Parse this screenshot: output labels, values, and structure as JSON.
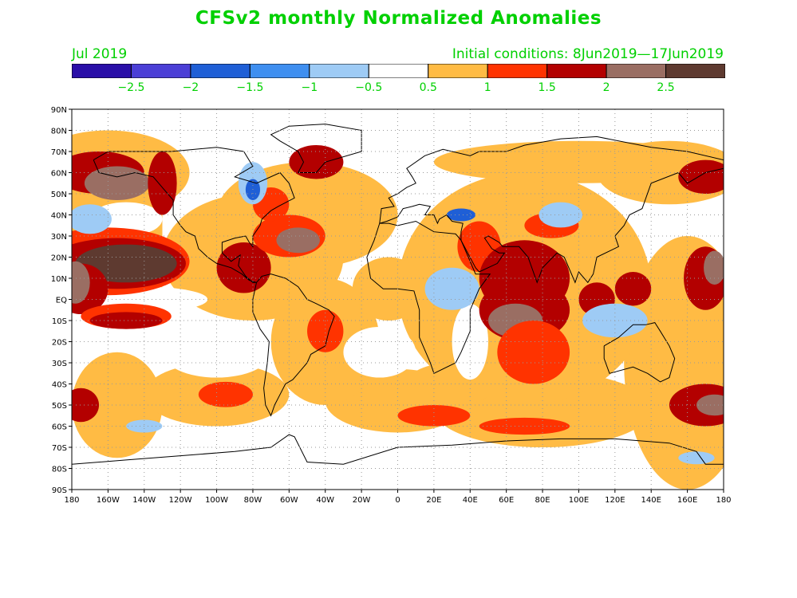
{
  "title": "CFSv2 monthly Normalized Anomalies",
  "valid_month": "Jul 2019",
  "initial_conditions": "Initial conditions: 8Jun2019—17Jun2019",
  "colors": {
    "text_green": "#00d000",
    "land_outline": "#000000",
    "grid": "#9a9a9a"
  },
  "colorbar": {
    "colors": [
      "#2a0fa8",
      "#4b3fd6",
      "#1f5fd6",
      "#3f8ff0",
      "#9ecbf5",
      "#ffffff",
      "#ffbb44",
      "#ff3300",
      "#b30000",
      "#9a6e63",
      "#5e3a30"
    ],
    "labels": [
      "−2.5",
      "−2",
      "−1.5",
      "−1",
      "−0.5",
      "0.5",
      "1",
      "1.5",
      "2",
      "2.5"
    ]
  },
  "map": {
    "lat_labels": [
      "90N",
      "80N",
      "70N",
      "60N",
      "50N",
      "40N",
      "30N",
      "20N",
      "10N",
      "EQ",
      "10S",
      "20S",
      "30S",
      "40S",
      "50S",
      "60S",
      "70S",
      "80S",
      "90S"
    ],
    "lon_labels": [
      "180",
      "160W",
      "140W",
      "120W",
      "100W",
      "80W",
      "60W",
      "40W",
      "20W",
      "0",
      "20E",
      "40E",
      "60E",
      "80E",
      "100E",
      "120E",
      "140E",
      "160E",
      "180"
    ],
    "lat_range": [
      -90,
      90
    ],
    "lon_range": [
      -180,
      180
    ]
  }
}
